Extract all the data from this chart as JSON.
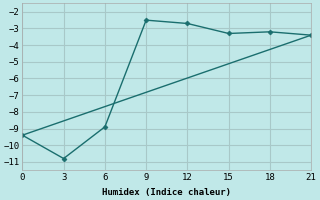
{
  "xlabel": "Humidex (Indice chaleur)",
  "bg_color": "#c0e8e8",
  "grid_color": "#a8c8c8",
  "line_color": "#1a6e6e",
  "line1_x": [
    0,
    3,
    6,
    9,
    12,
    15,
    18,
    21
  ],
  "line1_y": [
    -9.4,
    -10.8,
    -8.9,
    -2.5,
    -2.7,
    -3.3,
    -3.2,
    -3.4
  ],
  "line2_x": [
    0,
    21
  ],
  "line2_y": [
    -9.4,
    -3.4
  ],
  "xlim": [
    0,
    21
  ],
  "ylim": [
    -11.5,
    -1.5
  ],
  "xticks": [
    0,
    3,
    6,
    9,
    12,
    15,
    18,
    21
  ],
  "yticks": [
    -11,
    -10,
    -9,
    -8,
    -7,
    -6,
    -5,
    -4,
    -3,
    -2
  ]
}
